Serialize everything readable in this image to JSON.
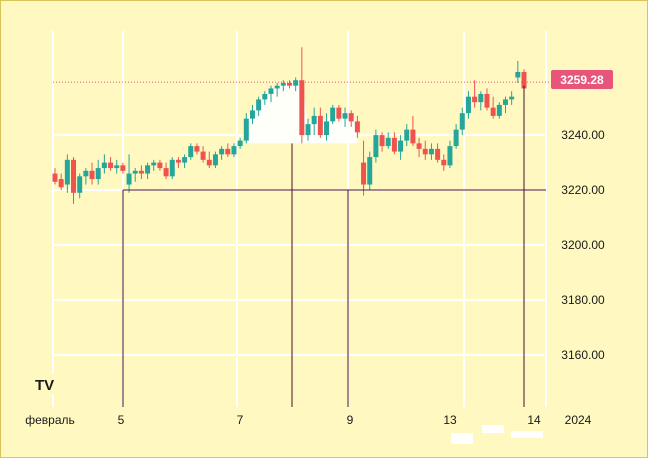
{
  "chart_data": {
    "type": "candlestick",
    "x_ticks": [
      "февраль",
      "5",
      "7",
      "9",
      "13",
      "14",
      "2024"
    ],
    "y_ticks": [
      "3160.00",
      "3180.00",
      "3200.00",
      "3220.00",
      "3240.00"
    ],
    "ylim": [
      3141,
      3275
    ],
    "last_price": 3259.28,
    "last_price_label": "3259.28",
    "crosshair_price": 3220,
    "colors": {
      "up": "#26a69a",
      "down": "#ef5350",
      "background": "#fff8c0",
      "grid": "#ffffff",
      "marker": "#4a1020",
      "price_line": "#e8557a"
    },
    "candles": [
      {
        "o": 3226,
        "h": 3228,
        "l": 3222,
        "c": 3223
      },
      {
        "o": 3224,
        "h": 3226,
        "l": 3220,
        "c": 3221
      },
      {
        "o": 3222,
        "h": 3233,
        "l": 3219,
        "c": 3231
      },
      {
        "o": 3231,
        "h": 3232,
        "l": 3215,
        "c": 3219
      },
      {
        "o": 3219,
        "h": 3226,
        "l": 3217,
        "c": 3225
      },
      {
        "o": 3225,
        "h": 3228,
        "l": 3222,
        "c": 3227
      },
      {
        "o": 3227,
        "h": 3230,
        "l": 3222,
        "c": 3224
      },
      {
        "o": 3224,
        "h": 3231,
        "l": 3222,
        "c": 3228
      },
      {
        "o": 3228,
        "h": 3233,
        "l": 3226,
        "c": 3230
      },
      {
        "o": 3230,
        "h": 3232,
        "l": 3227,
        "c": 3228
      },
      {
        "o": 3228,
        "h": 3231,
        "l": 3226,
        "c": 3229
      },
      {
        "o": 3229,
        "h": 3230,
        "l": 3226,
        "c": 3227
      },
      {
        "o": 3222,
        "h": 3233,
        "l": 3219,
        "c": 3226
      },
      {
        "o": 3226,
        "h": 3228,
        "l": 3223,
        "c": 3227
      },
      {
        "o": 3227,
        "h": 3229,
        "l": 3224,
        "c": 3226
      },
      {
        "o": 3226,
        "h": 3230,
        "l": 3224,
        "c": 3229
      },
      {
        "o": 3229,
        "h": 3231,
        "l": 3227,
        "c": 3230
      },
      {
        "o": 3230,
        "h": 3231,
        "l": 3227,
        "c": 3228
      },
      {
        "o": 3228,
        "h": 3230,
        "l": 3224,
        "c": 3225
      },
      {
        "o": 3225,
        "h": 3232,
        "l": 3224,
        "c": 3231
      },
      {
        "o": 3231,
        "h": 3232,
        "l": 3228,
        "c": 3230
      },
      {
        "o": 3230,
        "h": 3233,
        "l": 3228,
        "c": 3232
      },
      {
        "o": 3232,
        "h": 3237,
        "l": 3231,
        "c": 3236
      },
      {
        "o": 3236,
        "h": 3237,
        "l": 3233,
        "c": 3234
      },
      {
        "o": 3234,
        "h": 3236,
        "l": 3230,
        "c": 3231
      },
      {
        "o": 3231,
        "h": 3234,
        "l": 3228,
        "c": 3229
      },
      {
        "o": 3229,
        "h": 3234,
        "l": 3228,
        "c": 3233
      },
      {
        "o": 3233,
        "h": 3236,
        "l": 3231,
        "c": 3235
      },
      {
        "o": 3235,
        "h": 3237,
        "l": 3232,
        "c": 3233
      },
      {
        "o": 3233,
        "h": 3237,
        "l": 3232,
        "c": 3236
      },
      {
        "o": 3236,
        "h": 3239,
        "l": 3235,
        "c": 3238
      },
      {
        "o": 3238,
        "h": 3248,
        "l": 3237,
        "c": 3246
      },
      {
        "o": 3246,
        "h": 3251,
        "l": 3244,
        "c": 3249
      },
      {
        "o": 3249,
        "h": 3254,
        "l": 3247,
        "c": 3253
      },
      {
        "o": 3253,
        "h": 3256,
        "l": 3251,
        "c": 3255
      },
      {
        "o": 3255,
        "h": 3258,
        "l": 3252,
        "c": 3257
      },
      {
        "o": 3257,
        "h": 3259,
        "l": 3254,
        "c": 3258
      },
      {
        "o": 3258,
        "h": 3260,
        "l": 3256,
        "c": 3259
      },
      {
        "o": 3259,
        "h": 3260,
        "l": 3257,
        "c": 3258
      },
      {
        "o": 3258,
        "h": 3261,
        "l": 3256,
        "c": 3260
      },
      {
        "o": 3260,
        "h": 3272,
        "l": 3237,
        "c": 3240
      },
      {
        "o": 3240,
        "h": 3246,
        "l": 3238,
        "c": 3244
      },
      {
        "o": 3244,
        "h": 3250,
        "l": 3240,
        "c": 3247
      },
      {
        "o": 3247,
        "h": 3250,
        "l": 3239,
        "c": 3240
      },
      {
        "o": 3240,
        "h": 3248,
        "l": 3238,
        "c": 3245
      },
      {
        "o": 3245,
        "h": 3251,
        "l": 3244,
        "c": 3250
      },
      {
        "o": 3250,
        "h": 3251,
        "l": 3245,
        "c": 3246
      },
      {
        "o": 3246,
        "h": 3250,
        "l": 3243,
        "c": 3248
      },
      {
        "o": 3248,
        "h": 3249,
        "l": 3243,
        "c": 3245
      },
      {
        "o": 3245,
        "h": 3247,
        "l": 3239,
        "c": 3241
      },
      {
        "o": 3230,
        "h": 3238,
        "l": 3218,
        "c": 3222
      },
      {
        "o": 3222,
        "h": 3234,
        "l": 3220,
        "c": 3232
      },
      {
        "o": 3232,
        "h": 3242,
        "l": 3230,
        "c": 3240
      },
      {
        "o": 3240,
        "h": 3241,
        "l": 3234,
        "c": 3236
      },
      {
        "o": 3236,
        "h": 3241,
        "l": 3235,
        "c": 3239
      },
      {
        "o": 3239,
        "h": 3241,
        "l": 3233,
        "c": 3234
      },
      {
        "o": 3234,
        "h": 3240,
        "l": 3231,
        "c": 3238
      },
      {
        "o": 3238,
        "h": 3244,
        "l": 3236,
        "c": 3242
      },
      {
        "o": 3242,
        "h": 3247,
        "l": 3236,
        "c": 3237
      },
      {
        "o": 3237,
        "h": 3239,
        "l": 3232,
        "c": 3235
      },
      {
        "o": 3235,
        "h": 3238,
        "l": 3231,
        "c": 3233
      },
      {
        "o": 3233,
        "h": 3237,
        "l": 3231,
        "c": 3235
      },
      {
        "o": 3235,
        "h": 3237,
        "l": 3230,
        "c": 3231
      },
      {
        "o": 3231,
        "h": 3233,
        "l": 3227,
        "c": 3229
      },
      {
        "o": 3229,
        "h": 3238,
        "l": 3228,
        "c": 3236
      },
      {
        "o": 3236,
        "h": 3244,
        "l": 3235,
        "c": 3242
      },
      {
        "o": 3242,
        "h": 3250,
        "l": 3240,
        "c": 3248
      },
      {
        "o": 3248,
        "h": 3256,
        "l": 3246,
        "c": 3254
      },
      {
        "o": 3254,
        "h": 3260,
        "l": 3250,
        "c": 3252
      },
      {
        "o": 3252,
        "h": 3256,
        "l": 3249,
        "c": 3255
      },
      {
        "o": 3255,
        "h": 3257,
        "l": 3249,
        "c": 3250
      },
      {
        "o": 3250,
        "h": 3254,
        "l": 3246,
        "c": 3247
      },
      {
        "o": 3247,
        "h": 3252,
        "l": 3246,
        "c": 3251
      },
      {
        "o": 3251,
        "h": 3254,
        "l": 3248,
        "c": 3253
      },
      {
        "o": 3253,
        "h": 3256,
        "l": 3251,
        "c": 3254
      },
      {
        "o": 3261,
        "h": 3267,
        "l": 3259,
        "c": 3263
      },
      {
        "o": 3263,
        "h": 3264,
        "l": 3256,
        "c": 3257
      }
    ]
  },
  "brand": {
    "logo_text": "TV"
  }
}
